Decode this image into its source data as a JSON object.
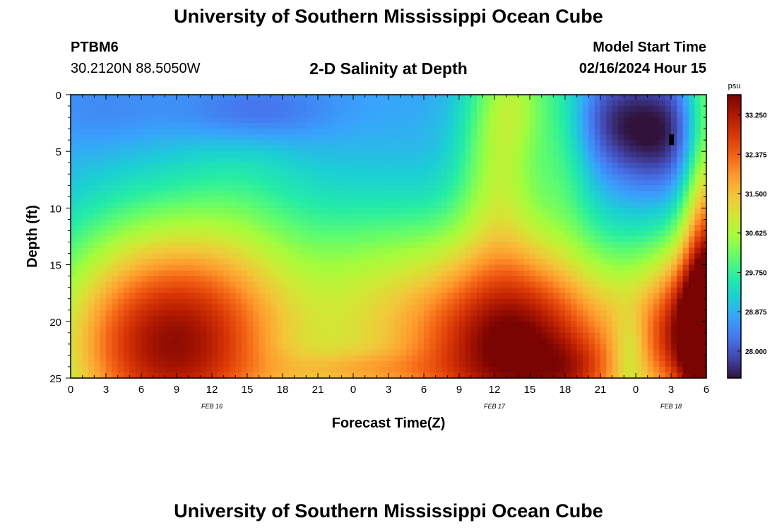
{
  "header": {
    "title": "University of Southern Mississippi Ocean Cube",
    "station": "PTBM6",
    "coords": "30.2120N  88.5050W",
    "subtitle": "2-D Salinity at Depth",
    "model_start_label": "Model Start Time",
    "model_start_value": "02/16/2024 Hour 15"
  },
  "footer": {
    "title": "University of Southern Mississippi Ocean Cube"
  },
  "chart_data": {
    "type": "heatmap",
    "title": "2-D Salinity at Depth",
    "xlabel": "Forecast Time(Z)",
    "ylabel": "Depth (ft)",
    "x_range_hours": [
      0,
      54
    ],
    "x_tick_labels": [
      "0",
      "3",
      "6",
      "9",
      "12",
      "15",
      "18",
      "21",
      "0",
      "3",
      "6",
      "9",
      "12",
      "15",
      "18",
      "21",
      "0",
      "3",
      "6"
    ],
    "date_labels": [
      {
        "label": "FEB 16",
        "hour": 12
      },
      {
        "label": "FEB 17",
        "hour": 36
      },
      {
        "label": "FEB 18",
        "hour": 51
      }
    ],
    "y_range_ft": [
      0,
      25
    ],
    "y_ticks": [
      0,
      5,
      10,
      15,
      20,
      25
    ],
    "y_reversed": true,
    "colorbar": {
      "unit": "psu",
      "range": [
        27.4,
        33.7
      ],
      "ticks": [
        "33.250",
        "32.375",
        "31.500",
        "30.625",
        "29.750",
        "28.875",
        "28.000"
      ]
    },
    "colormap": [
      "#30123b",
      "#4145ab",
      "#4675ed",
      "#39a2fc",
      "#1bcfd4",
      "#24eca6",
      "#61fc6c",
      "#a4fc3b",
      "#d1e834",
      "#f3c63a",
      "#fe9b2d",
      "#f36315",
      "#d93806",
      "#b11901",
      "#7a0402"
    ],
    "annotations": [
      {
        "type": "marker",
        "hour": 51,
        "depth_ft": 4,
        "color": "#000000"
      }
    ],
    "grid_sampling": {
      "dt_hours": 0.5,
      "dz_ft": 0.5
    },
    "description_of_field": [
      {
        "hour_center": 8,
        "depth_ft": 21,
        "psu": 33.0
      },
      {
        "hour_center": 25,
        "depth_ft": 20,
        "psu": 30.4
      },
      {
        "hour_center": 38,
        "depth_ft": 21,
        "psu": 33.2
      },
      {
        "hour_center": 51,
        "depth_ft": 21,
        "psu": 33.5
      },
      {
        "hour_center": 50,
        "depth_ft": 4,
        "psu": 27.7
      },
      {
        "hour_center": 14,
        "depth_ft": 1,
        "psu": 28.0
      }
    ]
  }
}
